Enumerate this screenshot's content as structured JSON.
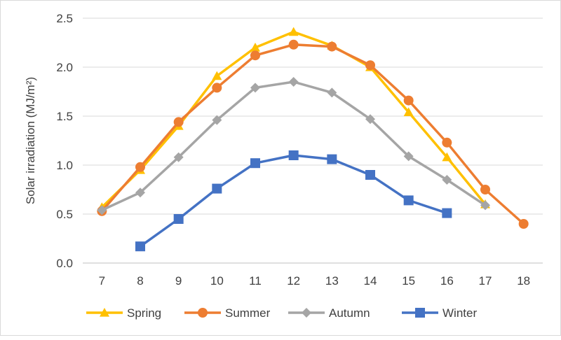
{
  "chart_data": {
    "type": "line",
    "title": "",
    "xlabel": "",
    "ylabel": "Solar irradiation  (MJ/m²)",
    "x": [
      7,
      8,
      9,
      10,
      11,
      12,
      13,
      14,
      15,
      16,
      17,
      18
    ],
    "ylim": [
      0,
      2.5
    ],
    "yticks": [
      "0.0",
      "0.5",
      "1.0",
      "1.5",
      "2.0",
      "2.5"
    ],
    "grid": "horizontal",
    "legend_position": "bottom",
    "series": [
      {
        "name": "Spring",
        "color": "#FFC000",
        "marker": "triangle",
        "x": [
          7,
          8,
          9,
          10,
          11,
          12,
          13,
          14,
          15,
          16,
          17
        ],
        "values": [
          0.57,
          0.95,
          1.4,
          1.91,
          2.2,
          2.36,
          2.22,
          2.0,
          1.54,
          1.08,
          0.6
        ]
      },
      {
        "name": "Summer",
        "color": "#ED7D31",
        "marker": "circle",
        "x": [
          7,
          8,
          9,
          10,
          11,
          12,
          13,
          14,
          15,
          16,
          17,
          18
        ],
        "values": [
          0.53,
          0.98,
          1.44,
          1.79,
          2.12,
          2.23,
          2.21,
          2.02,
          1.66,
          1.23,
          0.75,
          0.4
        ]
      },
      {
        "name": "Autumn",
        "color": "#A5A5A5",
        "marker": "diamond",
        "x": [
          7,
          8,
          9,
          10,
          11,
          12,
          13,
          14,
          15,
          16,
          17
        ],
        "values": [
          0.54,
          0.72,
          1.08,
          1.46,
          1.79,
          1.85,
          1.74,
          1.47,
          1.09,
          0.85,
          0.59
        ]
      },
      {
        "name": "Winter",
        "color": "#4472C4",
        "marker": "square",
        "x": [
          8,
          9,
          10,
          11,
          12,
          13,
          14,
          15,
          16
        ],
        "values": [
          0.17,
          0.45,
          0.76,
          1.02,
          1.1,
          1.06,
          0.9,
          0.64,
          0.51
        ]
      }
    ]
  }
}
